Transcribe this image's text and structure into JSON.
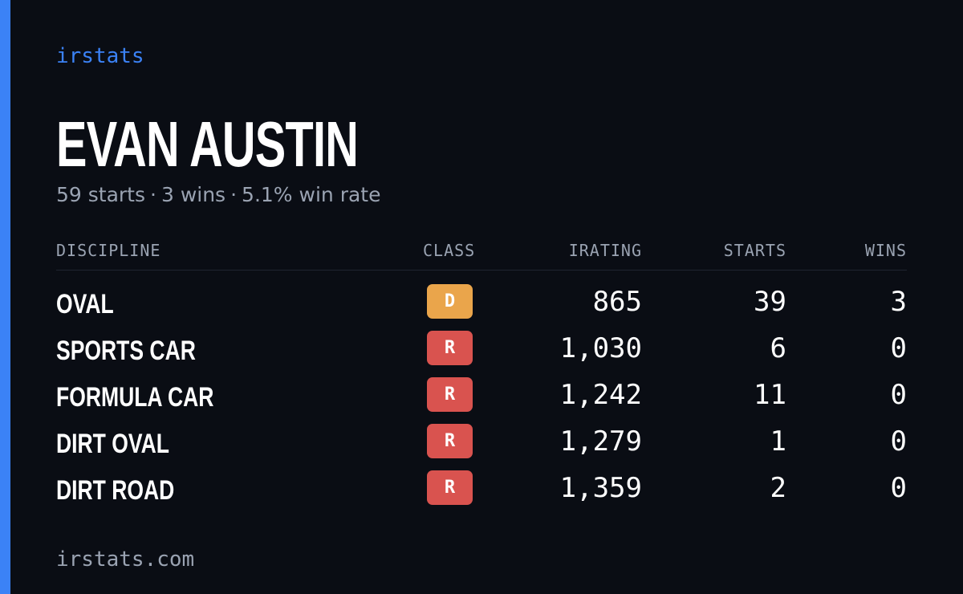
{
  "brand": "irstats",
  "driver": {
    "name": "EVAN AUSTIN",
    "starts_text": "59 starts",
    "wins_text": "3 wins",
    "win_rate_text": "5.1% win rate",
    "separator": "·"
  },
  "table": {
    "headers": {
      "discipline": "DISCIPLINE",
      "class": "CLASS",
      "irating": "IRATING",
      "starts": "STARTS",
      "wins": "WINS"
    },
    "rows": [
      {
        "discipline": "OVAL",
        "class": "D",
        "class_color": "#eaa54b",
        "irating": "865",
        "starts": "39",
        "wins": "3"
      },
      {
        "discipline": "SPORTS CAR",
        "class": "R",
        "class_color": "#d9534f",
        "irating": "1,030",
        "starts": "6",
        "wins": "0"
      },
      {
        "discipline": "FORMULA CAR",
        "class": "R",
        "class_color": "#d9534f",
        "irating": "1,242",
        "starts": "11",
        "wins": "0"
      },
      {
        "discipline": "DIRT OVAL",
        "class": "R",
        "class_color": "#d9534f",
        "irating": "1,279",
        "starts": "1",
        "wins": "0"
      },
      {
        "discipline": "DIRT ROAD",
        "class": "R",
        "class_color": "#d9534f",
        "irating": "1,359",
        "starts": "2",
        "wins": "0"
      }
    ]
  },
  "footer": "irstats.com",
  "colors": {
    "accent": "#3b82f6",
    "background": "#0a0d14",
    "muted_text": "#9aa3b2"
  }
}
